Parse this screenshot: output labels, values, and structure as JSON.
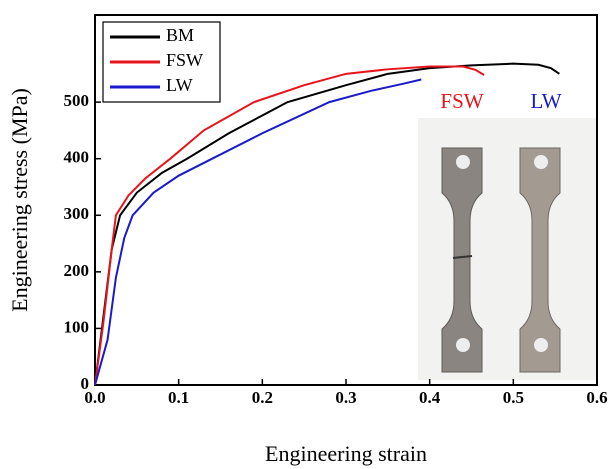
{
  "chart_data": {
    "type": "line",
    "xlabel": "Engineering strain",
    "ylabel": "Engineering stress (MPa)",
    "xlim": [
      0,
      0.6
    ],
    "ylim": [
      0,
      654
    ],
    "xticks": [
      {
        "value": 0,
        "label": "0.0"
      },
      0.1,
      0.2,
      0.3,
      0.4,
      0.5,
      0.6
    ],
    "yticks": [
      0,
      100,
      200,
      300,
      400,
      500
    ],
    "legend": "upper left",
    "annotations": [
      {
        "text": "FSW",
        "color": "#e8141b"
      },
      {
        "text": "LW",
        "color": "#1a1acc"
      }
    ],
    "series": [
      {
        "name": "BM",
        "color": "#000000",
        "x": [
          0,
          0.01,
          0.02,
          0.03,
          0.05,
          0.08,
          0.11,
          0.16,
          0.23,
          0.3,
          0.35,
          0.4,
          0.45,
          0.5,
          0.53,
          0.545,
          0.555
        ],
        "values": [
          0,
          120,
          240,
          300,
          340,
          375,
          400,
          445,
          500,
          530,
          550,
          560,
          565,
          568,
          566,
          560,
          550
        ]
      },
      {
        "name": "FSW",
        "color": "#e8141b",
        "x": [
          0,
          0.01,
          0.02,
          0.025,
          0.04,
          0.06,
          0.09,
          0.13,
          0.19,
          0.25,
          0.3,
          0.35,
          0.4,
          0.44,
          0.455,
          0.465
        ],
        "values": [
          0,
          110,
          240,
          300,
          335,
          365,
          400,
          450,
          500,
          530,
          550,
          558,
          563,
          563,
          557,
          548
        ]
      },
      {
        "name": "LW",
        "color": "#1a1acc",
        "x": [
          0,
          0.015,
          0.025,
          0.035,
          0.045,
          0.07,
          0.1,
          0.14,
          0.2,
          0.28,
          0.33,
          0.37,
          0.39
        ],
        "values": [
          0,
          80,
          190,
          260,
          300,
          340,
          370,
          400,
          445,
          500,
          520,
          533,
          540
        ]
      }
    ]
  }
}
